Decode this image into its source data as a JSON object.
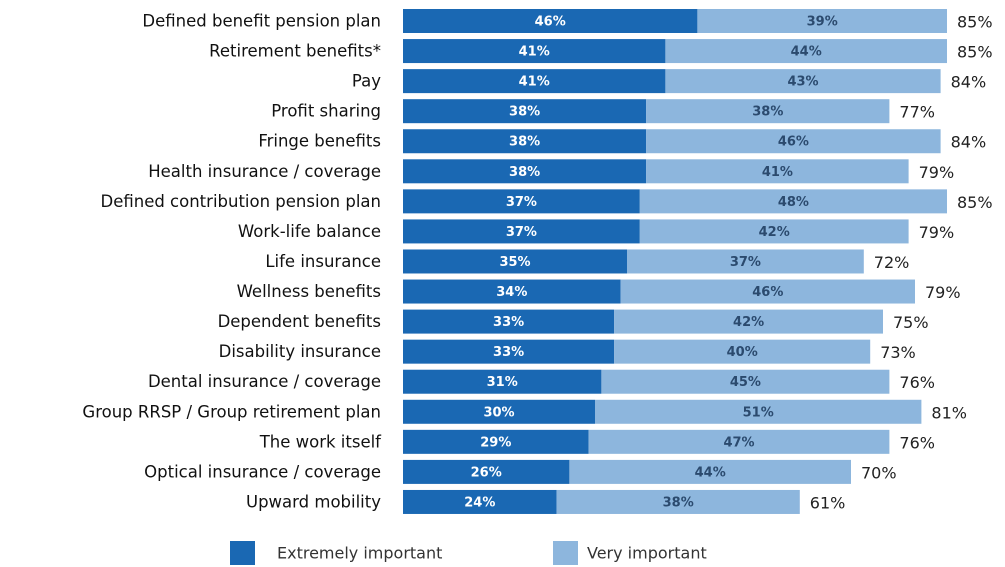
{
  "chart_data": {
    "type": "stacked-bar-horizontal",
    "categories": [
      "Defined benefit pension plan",
      "Retirement benefits*",
      "Pay",
      "Profit sharing",
      "Fringe benefits",
      "Health insurance / coverage",
      "Defined contribution pension plan",
      "Work-life balance",
      "Life insurance",
      "Wellness benefits",
      "Dependent benefits",
      "Disability insurance",
      "Dental insurance / coverage",
      "Group RRSP / Group retirement plan",
      "The work itself",
      "Optical insurance / coverage",
      "Upward mobility"
    ],
    "series": [
      {
        "name": "Extremely important",
        "color": "#1a68b3",
        "label_color": "#ffffff",
        "values": [
          46,
          41,
          41,
          38,
          38,
          38,
          37,
          37,
          35,
          34,
          33,
          33,
          31,
          30,
          29,
          26,
          24
        ],
        "value_labels": [
          "46%",
          "41%",
          "41%",
          "38%",
          "38%",
          "38%",
          "37%",
          "37%",
          "35%",
          "34%",
          "33%",
          "33%",
          "31%",
          "30%",
          "29%",
          "26%",
          "24%"
        ]
      },
      {
        "name": "Very important",
        "color": "#8db6dd",
        "label_color": "#2b4a6e",
        "values": [
          39,
          44,
          43,
          38,
          46,
          41,
          48,
          42,
          37,
          46,
          42,
          40,
          45,
          51,
          47,
          44,
          38
        ],
        "value_labels": [
          "39%",
          "44%",
          "43%",
          "38%",
          "46%",
          "41%",
          "48%",
          "42%",
          "37%",
          "46%",
          "42%",
          "40%",
          "45%",
          "51%",
          "47%",
          "44%",
          "38%"
        ]
      }
    ],
    "totals": [
      85,
      85,
      84,
      77,
      84,
      79,
      85,
      79,
      72,
      79,
      75,
      73,
      76,
      81,
      76,
      70,
      61
    ],
    "total_labels": [
      "85%",
      "85%",
      "84%",
      "77%",
      "84%",
      "79%",
      "85%",
      "79%",
      "72%",
      "79%",
      "75%",
      "73%",
      "76%",
      "81%",
      "76%",
      "70%",
      "61%"
    ],
    "legend": "bottom"
  }
}
